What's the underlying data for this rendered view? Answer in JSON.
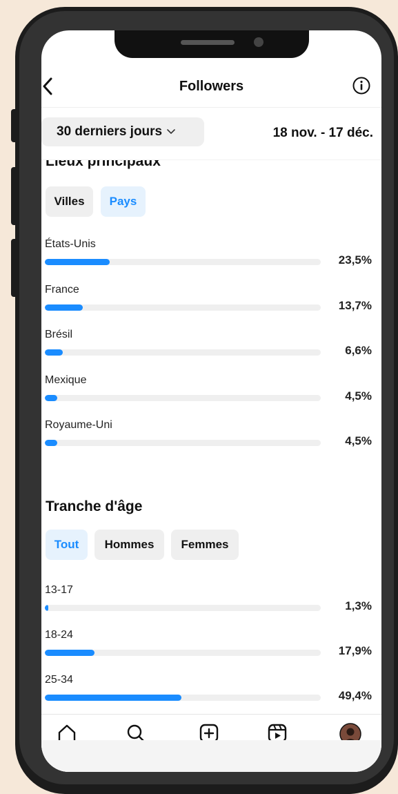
{
  "header": {
    "title": "Followers"
  },
  "filter": {
    "range_label": "30 derniers jours",
    "date_range": "18 nov. - 17 déc."
  },
  "locations": {
    "title": "Lieux principaux",
    "tabs": [
      {
        "label": "Villes",
        "active": false
      },
      {
        "label": "Pays",
        "active": true
      }
    ],
    "rows": [
      {
        "label": "États-Unis",
        "value": "23,5%",
        "fraction": 0.235
      },
      {
        "label": "France",
        "value": "13,7%",
        "fraction": 0.137
      },
      {
        "label": "Brésil",
        "value": "6,6%",
        "fraction": 0.066
      },
      {
        "label": "Mexique",
        "value": "4,5%",
        "fraction": 0.045
      },
      {
        "label": "Royaume-Uni",
        "value": "4,5%",
        "fraction": 0.045
      }
    ]
  },
  "age": {
    "title": "Tranche d'âge",
    "tabs": [
      {
        "label": "Tout",
        "active": true
      },
      {
        "label": "Hommes",
        "active": false
      },
      {
        "label": "Femmes",
        "active": false
      }
    ],
    "rows": [
      {
        "label": "13-17",
        "value": "1,3%",
        "fraction": 0.013
      },
      {
        "label": "18-24",
        "value": "17,9%",
        "fraction": 0.179
      },
      {
        "label": "25-34",
        "value": "49,4%",
        "fraction": 0.494
      }
    ]
  },
  "tabbar": {
    "icons": [
      "home-icon",
      "search-icon",
      "create-icon",
      "reels-icon",
      "profile-avatar"
    ]
  },
  "colors": {
    "accent": "#1a8cff",
    "track": "#efefef",
    "chip_active_bg": "#e6f2fd",
    "background": "#f6e8d9"
  }
}
